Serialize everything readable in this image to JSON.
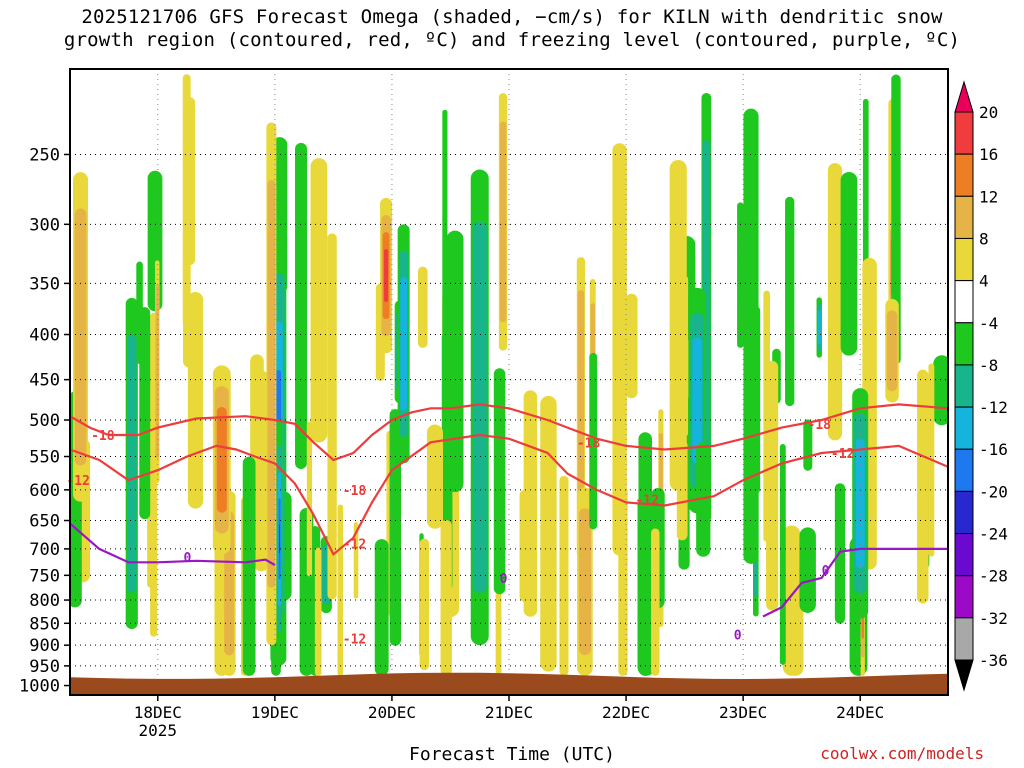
{
  "title": {
    "line1": "2025121706 GFS Forecast Omega (shaded, −cm/s) for KILN with dendritic snow",
    "line2": "growth region (contoured, red, ºC) and freezing level (contoured, purple, ºC)"
  },
  "credit": "coolwx.com/models",
  "chart_data": {
    "type": "heatmap",
    "xlabel": "Forecast Time (UTC)",
    "ylabel": "",
    "x_ticks": [
      {
        "label": "18DEC",
        "sublabel": "2025",
        "day": 18
      },
      {
        "label": "19DEC",
        "sublabel": "",
        "day": 19
      },
      {
        "label": "20DEC",
        "sublabel": "",
        "day": 20
      },
      {
        "label": "21DEC",
        "sublabel": "",
        "day": 21
      },
      {
        "label": "22DEC",
        "sublabel": "",
        "day": 22
      },
      {
        "label": "23DEC",
        "sublabel": "",
        "day": 23
      },
      {
        "label": "24DEC",
        "sublabel": "",
        "day": 24
      }
    ],
    "xlim_days": [
      17.25,
      24.75
    ],
    "y_ticks": [
      250,
      300,
      350,
      400,
      450,
      500,
      550,
      600,
      650,
      700,
      750,
      800,
      850,
      900,
      950,
      1000
    ],
    "ylim_hpa": [
      200,
      1025
    ],
    "y_scale": "log-pressure",
    "grid": true,
    "colorbar": {
      "labels": [
        "20",
        "16",
        "12",
        "8",
        "4",
        "-4",
        "-8",
        "-12",
        "-16",
        "-20",
        "-24",
        "-28",
        "-32",
        "-36"
      ],
      "colors": [
        "#e8005a",
        "#f03c3c",
        "#ee7e24",
        "#e6b446",
        "#e8d83a",
        "#ffffff",
        "#1ec81e",
        "#18b48c",
        "#14b4dc",
        "#1e78f0",
        "#2828d0",
        "#6a0ad0",
        "#9c0ac8",
        "#a8a8a8",
        "#000000"
      ]
    },
    "contour_labels": [
      {
        "text": "-18",
        "color": "#ee3c3c",
        "day": 17.43,
        "hpa": 520
      },
      {
        "text": "-12",
        "color": "#ee3c3c",
        "day": 17.22,
        "hpa": 585
      },
      {
        "text": "-18",
        "color": "#ee3c3c",
        "day": 19.58,
        "hpa": 600
      },
      {
        "text": "-12",
        "color": "#ee3c3c",
        "day": 19.58,
        "hpa": 690
      },
      {
        "text": "-12",
        "color": "#ee3c3c",
        "day": 19.58,
        "hpa": 885
      },
      {
        "text": "-18",
        "color": "#ee3c3c",
        "day": 21.58,
        "hpa": 530
      },
      {
        "text": "-12",
        "color": "#ee3c3c",
        "day": 22.08,
        "hpa": 615
      },
      {
        "text": "-18",
        "color": "#ee3c3c",
        "day": 23.55,
        "hpa": 505
      },
      {
        "text": "-12",
        "color": "#ee3c3c",
        "day": 23.75,
        "hpa": 545
      },
      {
        "text": "0",
        "color": "#9a18c4",
        "day": 18.22,
        "hpa": 715
      },
      {
        "text": "0",
        "color": "#9a18c4",
        "day": 20.92,
        "hpa": 755
      },
      {
        "text": "0",
        "color": "#9a18c4",
        "day": 23.67,
        "hpa": 740
      },
      {
        "text": "0",
        "color": "#9a18c4",
        "day": 22.92,
        "hpa": 875
      }
    ],
    "series": [
      {
        "name": "-18",
        "color": "#ee3c3c",
        "points": [
          [
            17.25,
            495
          ],
          [
            17.42,
            510
          ],
          [
            17.58,
            520
          ],
          [
            17.83,
            520
          ],
          [
            18.0,
            510
          ],
          [
            18.33,
            498
          ],
          [
            18.75,
            495
          ],
          [
            19.0,
            500
          ],
          [
            19.17,
            505
          ],
          [
            19.33,
            530
          ],
          [
            19.5,
            555
          ],
          [
            19.67,
            545
          ],
          [
            19.83,
            520
          ],
          [
            20.0,
            500
          ],
          [
            20.17,
            490
          ],
          [
            20.33,
            485
          ],
          [
            20.5,
            485
          ],
          [
            20.75,
            480
          ],
          [
            21.0,
            485
          ],
          [
            21.33,
            500
          ],
          [
            21.5,
            510
          ],
          [
            21.75,
            525
          ],
          [
            22.0,
            535
          ],
          [
            22.33,
            540
          ],
          [
            22.75,
            535
          ],
          [
            23.0,
            525
          ],
          [
            23.33,
            510
          ],
          [
            23.67,
            500
          ],
          [
            24.0,
            485
          ],
          [
            24.33,
            480
          ],
          [
            24.75,
            485
          ]
        ]
      },
      {
        "name": "-12",
        "color": "#ee3c3c",
        "points": [
          [
            17.25,
            540
          ],
          [
            17.5,
            555
          ],
          [
            17.75,
            585
          ],
          [
            18.0,
            570
          ],
          [
            18.25,
            550
          ],
          [
            18.5,
            535
          ],
          [
            18.67,
            540
          ],
          [
            18.83,
            550
          ],
          [
            19.0,
            560
          ],
          [
            19.17,
            590
          ],
          [
            19.33,
            640
          ],
          [
            19.5,
            710
          ],
          [
            19.67,
            680
          ],
          [
            19.83,
            620
          ],
          [
            20.0,
            570
          ],
          [
            20.33,
            530
          ],
          [
            20.75,
            520
          ],
          [
            21.0,
            525
          ],
          [
            21.33,
            545
          ],
          [
            21.5,
            575
          ],
          [
            21.75,
            600
          ],
          [
            22.0,
            620
          ],
          [
            22.33,
            625
          ],
          [
            22.75,
            610
          ],
          [
            23.0,
            585
          ],
          [
            23.33,
            560
          ],
          [
            23.67,
            545
          ],
          [
            24.0,
            540
          ],
          [
            24.33,
            535
          ],
          [
            24.75,
            565
          ]
        ]
      },
      {
        "name": "0",
        "color": "#9a18c4",
        "points": [
          [
            17.25,
            655
          ],
          [
            17.5,
            700
          ],
          [
            17.75,
            725
          ],
          [
            18.0,
            725
          ],
          [
            18.33,
            722
          ],
          [
            18.75,
            725
          ],
          [
            18.92,
            720
          ],
          [
            19.0,
            730
          ]
        ]
      },
      {
        "name": "0",
        "color": "#9a18c4",
        "points": [
          [
            23.17,
            835
          ],
          [
            23.33,
            815
          ],
          [
            23.5,
            765
          ],
          [
            23.67,
            755
          ],
          [
            23.83,
            705
          ],
          [
            24.0,
            700
          ],
          [
            24.33,
            700
          ],
          [
            24.75,
            700
          ]
        ]
      }
    ]
  }
}
